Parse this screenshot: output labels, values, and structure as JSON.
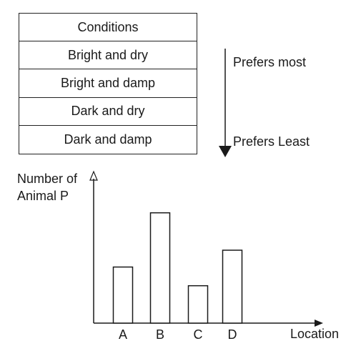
{
  "table": {
    "header": "Conditions",
    "rows": [
      "Bright and dry",
      "Bright and damp",
      "Dark and dry",
      "Dark and damp"
    ]
  },
  "preference": {
    "top_label": "Prefers most",
    "bottom_label": "Prefers Least"
  },
  "chart_data": {
    "type": "bar",
    "categories": [
      "A",
      "B",
      "C",
      "D"
    ],
    "values": [
      30,
      59,
      20,
      39
    ],
    "ylabel": "Number of Animal P",
    "ylabel_lines": [
      "Number of",
      "Animal P"
    ],
    "xlabel": "Location",
    "ylim": [
      0,
      78
    ],
    "grid": false
  }
}
